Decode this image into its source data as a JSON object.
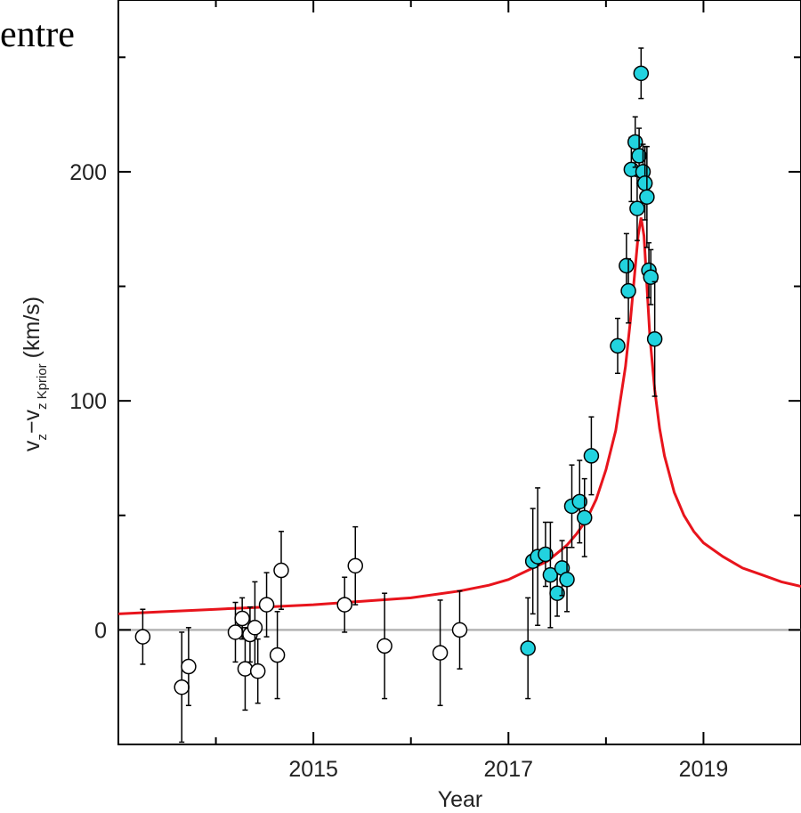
{
  "header_fragment": "entre",
  "chart_data": {
    "type": "scatter",
    "xlabel": "Year",
    "ylabel": {
      "main": "v",
      "sub1": "z",
      "mid": "−v",
      "sub2": "z Kprior",
      "unit": "(km/s)"
    },
    "xlim": [
      2013.0,
      2020.0
    ],
    "ylim": [
      -50,
      275
    ],
    "xticks": [
      2015,
      2017,
      2019
    ],
    "yticks": [
      0,
      100,
      200
    ],
    "colors": {
      "fit": "#e8141c",
      "zero_line": "#b4b4b4",
      "highlight": "#22d3df",
      "open": "#ffffff"
    },
    "series": [
      {
        "marker": "open-circle",
        "points": [
          {
            "x": 2013.25,
            "y": -3,
            "err": 12
          },
          {
            "x": 2013.65,
            "y": -25,
            "err": 24
          },
          {
            "x": 2013.72,
            "y": -16,
            "err": 17
          },
          {
            "x": 2014.2,
            "y": -1,
            "err": 13
          },
          {
            "x": 2014.27,
            "y": 5,
            "err": 9
          },
          {
            "x": 2014.3,
            "y": -17,
            "err": 18
          },
          {
            "x": 2014.35,
            "y": -2,
            "err": 12
          },
          {
            "x": 2014.4,
            "y": 1,
            "err": 20
          },
          {
            "x": 2014.43,
            "y": -18,
            "err": 14
          },
          {
            "x": 2014.52,
            "y": 11,
            "err": 14
          },
          {
            "x": 2014.63,
            "y": -11,
            "err": 19
          },
          {
            "x": 2014.67,
            "y": 26,
            "err": 17
          },
          {
            "x": 2015.32,
            "y": 11,
            "err": 12
          },
          {
            "x": 2015.43,
            "y": 28,
            "err": 17
          },
          {
            "x": 2015.73,
            "y": -7,
            "err": 23
          },
          {
            "x": 2016.3,
            "y": -10,
            "err": 23
          },
          {
            "x": 2016.5,
            "y": 0,
            "err": 17
          }
        ]
      },
      {
        "marker": "filled-circle",
        "points": [
          {
            "x": 2017.2,
            "y": -8,
            "err": 22
          },
          {
            "x": 2017.25,
            "y": 30,
            "err": 23
          },
          {
            "x": 2017.3,
            "y": 32,
            "err": 30
          },
          {
            "x": 2017.38,
            "y": 33,
            "err": 14
          },
          {
            "x": 2017.43,
            "y": 24,
            "err": 23
          },
          {
            "x": 2017.5,
            "y": 16,
            "err": 10
          },
          {
            "x": 2017.55,
            "y": 27,
            "err": 12
          },
          {
            "x": 2017.6,
            "y": 22,
            "err": 14
          },
          {
            "x": 2017.65,
            "y": 54,
            "err": 18
          },
          {
            "x": 2017.73,
            "y": 56,
            "err": 18
          },
          {
            "x": 2017.78,
            "y": 49,
            "err": 17
          },
          {
            "x": 2017.85,
            "y": 76,
            "err": 17
          },
          {
            "x": 2018.12,
            "y": 124,
            "err": 12
          },
          {
            "x": 2018.21,
            "y": 159,
            "err": 14
          },
          {
            "x": 2018.23,
            "y": 148,
            "err": 14
          },
          {
            "x": 2018.26,
            "y": 201,
            "err": 14
          },
          {
            "x": 2018.3,
            "y": 213,
            "err": 11
          },
          {
            "x": 2018.32,
            "y": 184,
            "err": 14
          },
          {
            "x": 2018.34,
            "y": 207,
            "err": 12
          },
          {
            "x": 2018.36,
            "y": 243,
            "err": 11
          },
          {
            "x": 2018.38,
            "y": 200,
            "err": 12
          },
          {
            "x": 2018.4,
            "y": 195,
            "err": 16
          },
          {
            "x": 2018.42,
            "y": 189,
            "err": 22
          },
          {
            "x": 2018.44,
            "y": 157,
            "err": 12
          },
          {
            "x": 2018.46,
            "y": 154,
            "err": 12
          },
          {
            "x": 2018.5,
            "y": 127,
            "err": 25
          }
        ]
      }
    ],
    "fit_curve": {
      "x": [
        2013.0,
        2013.5,
        2014.0,
        2014.5,
        2015.0,
        2015.5,
        2016.0,
        2016.5,
        2016.8,
        2017.0,
        2017.2,
        2017.4,
        2017.6,
        2017.7,
        2017.8,
        2017.9,
        2018.0,
        2018.1,
        2018.2,
        2018.25,
        2018.3,
        2018.33,
        2018.36,
        2018.39,
        2018.42,
        2018.45,
        2018.5,
        2018.55,
        2018.6,
        2018.7,
        2018.8,
        2018.9,
        2019.0,
        2019.2,
        2019.4,
        2019.6,
        2019.8,
        2020.0
      ],
      "y": [
        7,
        8,
        9,
        10,
        11,
        12.5,
        14,
        17,
        19.5,
        22,
        26,
        30,
        37,
        42,
        48,
        57,
        70,
        87,
        115,
        135,
        158,
        172,
        180,
        172,
        150,
        128,
        105,
        88,
        76,
        60,
        50,
        43,
        38,
        32,
        27,
        24,
        21,
        19
      ]
    }
  }
}
